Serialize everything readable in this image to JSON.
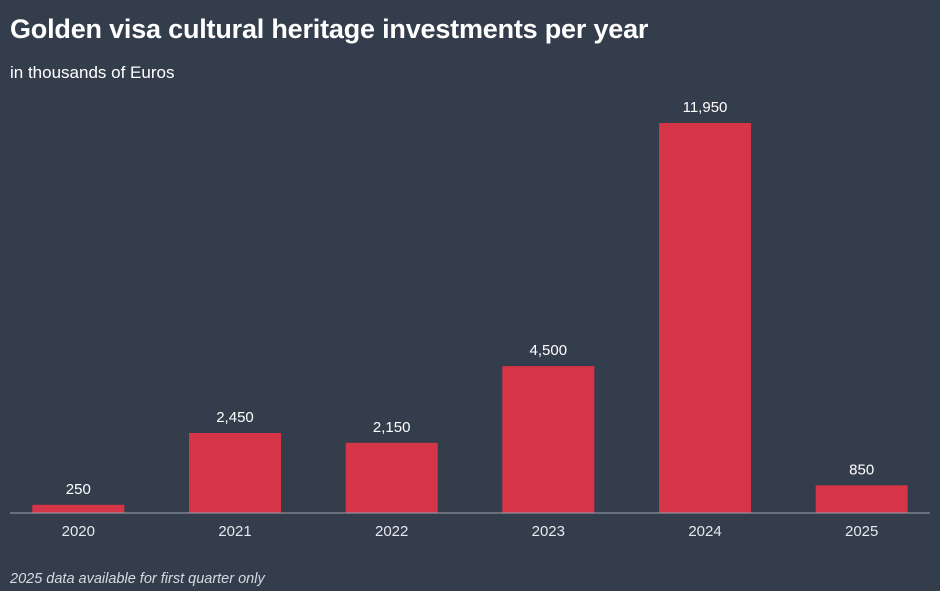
{
  "chart_data": {
    "type": "bar",
    "title": "Golden visa cultural heritage investments per year",
    "subtitle": "in thousands of Euros",
    "categories": [
      "2020",
      "2021",
      "2022",
      "2023",
      "2024",
      "2025"
    ],
    "values": [
      250,
      2450,
      2150,
      4500,
      11950,
      850
    ],
    "value_labels": [
      "250",
      "2,450",
      "2,150",
      "4,500",
      "11,950",
      "850"
    ],
    "ylim": [
      0,
      12000
    ],
    "xlabel": "",
    "ylabel": "",
    "grid": false,
    "legend": "none",
    "footnote": "2025 data available for first quarter only",
    "colors": {
      "bar": "#d63447",
      "background": "#343d4c",
      "axis": "#9aa2ad"
    }
  }
}
